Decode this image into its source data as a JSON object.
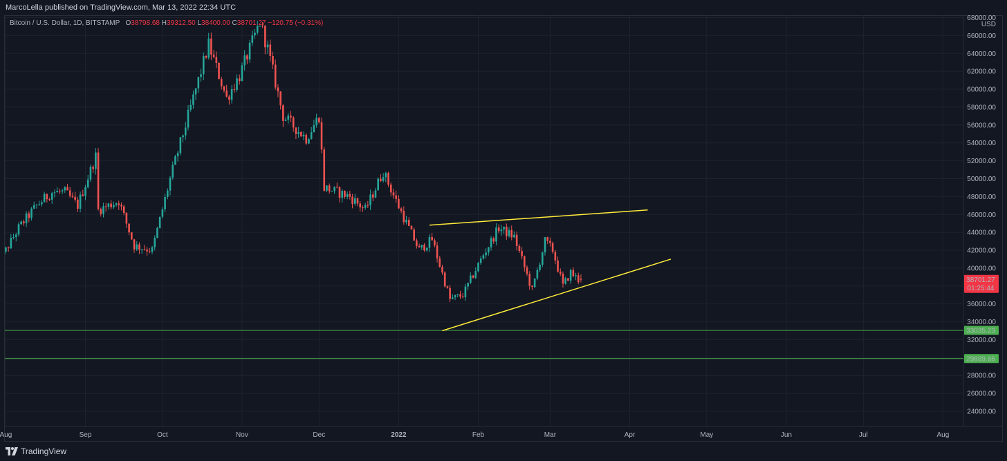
{
  "header": {
    "published_text": "MarcoLella published on TradingView.com, Mar 13, 2022 22:34 UTC"
  },
  "legend": {
    "symbol": "Bitcoin / U.S. Dollar, 1D, BITSTAMP",
    "o_label": "O",
    "o_value": "38798.68",
    "h_label": "H",
    "h_value": "39312.50",
    "l_label": "L",
    "l_value": "38400.00",
    "c_label": "C",
    "c_value": "38701.27",
    "change": "−120.75 (−0.31%)"
  },
  "footer": {
    "brand": "TradingView"
  },
  "chart_data": {
    "type": "candlestick",
    "currency": "USD",
    "y_axis": {
      "min": 22000,
      "max": 68000,
      "step": 2000,
      "ticks": [
        "24000.00",
        "26000.00",
        "28000.00",
        "30000.00",
        "32000.00",
        "34000.00",
        "36000.00",
        "38000.00",
        "40000.00",
        "42000.00",
        "44000.00",
        "46000.00",
        "48000.00",
        "50000.00",
        "52000.00",
        "54000.00",
        "56000.00",
        "58000.00",
        "60000.00",
        "62000.00",
        "64000.00",
        "66000.00",
        "68000.00"
      ]
    },
    "x_axis": {
      "labels": [
        "Aug",
        "Sep",
        "Oct",
        "Nov",
        "Dec",
        "2022",
        "Feb",
        "Mar",
        "Apr",
        "May",
        "Jun",
        "Jul",
        "Aug"
      ],
      "dates": [
        "2021-08-01",
        "2021-09-01",
        "2021-10-01",
        "2021-11-01",
        "2021-12-01",
        "2022-01-01",
        "2022-02-01",
        "2022-03-01",
        "2022-04-01",
        "2022-05-01",
        "2022-06-01",
        "2022-07-01",
        "2022-08-01"
      ]
    },
    "series": [
      {
        "anchors": [
          [
            "2021-07-28",
            39500
          ],
          [
            "2021-08-01",
            41500
          ],
          [
            "2021-08-07",
            44500
          ],
          [
            "2021-08-14",
            47000
          ],
          [
            "2021-08-20",
            48500
          ],
          [
            "2021-08-25",
            48500
          ],
          [
            "2021-08-30",
            47000
          ],
          [
            "2021-09-06",
            52500
          ],
          [
            "2021-09-07",
            46500
          ],
          [
            "2021-09-15",
            47500
          ],
          [
            "2021-09-21",
            42500
          ],
          [
            "2021-09-28",
            42000
          ],
          [
            "2021-10-05",
            50000
          ],
          [
            "2021-10-10",
            55000
          ],
          [
            "2021-10-15",
            60000
          ],
          [
            "2021-10-20",
            65000
          ],
          [
            "2021-10-27",
            59000
          ],
          [
            "2021-11-01",
            61500
          ],
          [
            "2021-11-09",
            67500
          ],
          [
            "2021-11-12",
            64500
          ],
          [
            "2021-11-18",
            57000
          ],
          [
            "2021-11-27",
            54500
          ],
          [
            "2021-12-02",
            57000
          ],
          [
            "2021-12-04",
            49000
          ],
          [
            "2021-12-14",
            48000
          ],
          [
            "2021-12-20",
            46500
          ],
          [
            "2021-12-27",
            50800
          ],
          [
            "2022-01-01",
            47500
          ],
          [
            "2022-01-10",
            42000
          ],
          [
            "2022-01-15",
            43200
          ],
          [
            "2022-01-22",
            36500
          ],
          [
            "2022-01-27",
            37000
          ],
          [
            "2022-02-04",
            41500
          ],
          [
            "2022-02-10",
            44500
          ],
          [
            "2022-02-16",
            43500
          ],
          [
            "2022-02-23",
            37500
          ],
          [
            "2022-02-28",
            43000
          ],
          [
            "2022-03-03",
            42000
          ],
          [
            "2022-03-07",
            38000
          ],
          [
            "2022-03-10",
            39500
          ],
          [
            "2022-03-13",
            38701
          ]
        ],
        "last_ohlc": {
          "open": 38798.68,
          "high": 39312.5,
          "low": 38400.0,
          "close": 38701.27
        }
      }
    ],
    "horizontal_lines": [
      {
        "value": 33035.23,
        "label": "33035.23",
        "color": "#4caf50"
      },
      {
        "value": 29889.66,
        "label": "29889.66",
        "color": "#4caf50"
      }
    ],
    "trend_lines": [
      {
        "name": "upper",
        "from": [
          "2022-01-13",
          44800
        ],
        "to": [
          "2022-04-08",
          46500
        ],
        "color": "#ffeb3b"
      },
      {
        "name": "lower",
        "from": [
          "2022-01-18",
          33000
        ],
        "to": [
          "2022-04-17",
          41000
        ],
        "color": "#ffeb3b"
      }
    ],
    "last_price_label": {
      "value": "38701.27",
      "countdown": "01:25:44",
      "color": "#f23645"
    },
    "colors": {
      "up": "#26a69a",
      "down": "#ef5350",
      "background": "#131722",
      "grid": "#1e222d",
      "text": "#b2b5be"
    }
  }
}
